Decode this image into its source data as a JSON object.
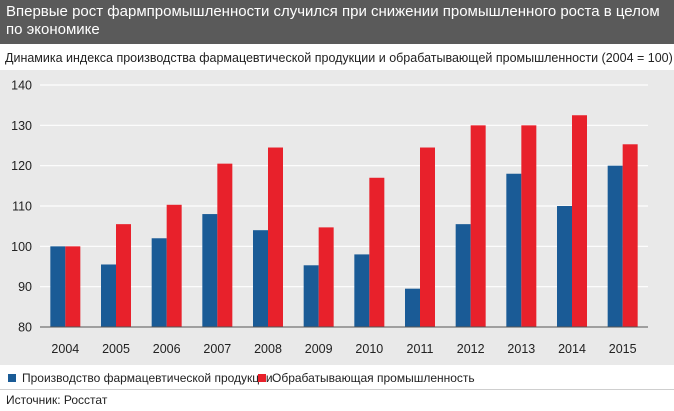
{
  "header": {
    "title": "Впервые рост фармпромышленности случился при снижении промышленного роста в целом по экономике"
  },
  "subtitle": "Динамика индекса производства фармацевтической продукции и обрабатывающей промышленности (2004 = 100)",
  "colors": {
    "pharma": "#1a5b96",
    "manufacturing": "#e8212b",
    "panel": "#e9e9e9",
    "header": "#5a5a5a"
  },
  "chart_data": {
    "type": "bar",
    "title": "Динамика индекса производства фармацевтической продукции и обрабатывающей промышленности (2004 = 100)",
    "categories": [
      "2004",
      "2005",
      "2006",
      "2007",
      "2008",
      "2009",
      "2010",
      "2011",
      "2012",
      "2013",
      "2014",
      "2015"
    ],
    "series": [
      {
        "name": "Производство фармацевтической продукции",
        "values": [
          100,
          95.5,
          102,
          108,
          104,
          95.3,
          98,
          89.5,
          105.5,
          118,
          110,
          120
        ]
      },
      {
        "name": "Обрабатывающая промышленность",
        "values": [
          100,
          105.5,
          110.3,
          120.5,
          124.5,
          104.7,
          117,
          124.5,
          130,
          130,
          132.5,
          125.3
        ]
      }
    ],
    "ylim": [
      80,
      140
    ],
    "yticks": [
      "80",
      "90",
      "100",
      "110",
      "120",
      "130",
      "140"
    ],
    "xlabel": "",
    "ylabel": "",
    "grid": true,
    "legend": "bottom"
  },
  "legend": [
    {
      "label": "Производство фармацевтической продукции"
    },
    {
      "label": "Обрабатывающая промышленность"
    }
  ],
  "source": "Источник: Росстат"
}
